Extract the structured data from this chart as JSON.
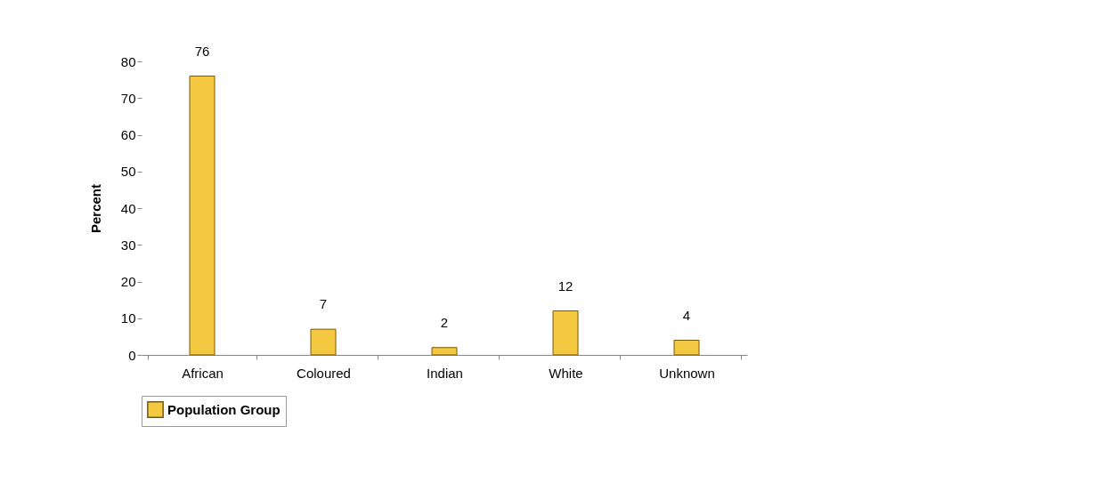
{
  "chart_data": {
    "type": "bar",
    "ylabel": "Percent",
    "categories": [
      "African",
      "Coloured",
      "Indian",
      "White",
      "Unknown"
    ],
    "series": [
      {
        "name": "Population Group",
        "color": "#f5c842",
        "values": [
          76,
          7,
          2,
          12,
          4
        ]
      }
    ],
    "ylim": [
      0,
      80
    ],
    "yticks": [
      0,
      10,
      20,
      30,
      40,
      50,
      60,
      70,
      80
    ],
    "data_labels": true,
    "legend": "bottom",
    "grid": false
  }
}
